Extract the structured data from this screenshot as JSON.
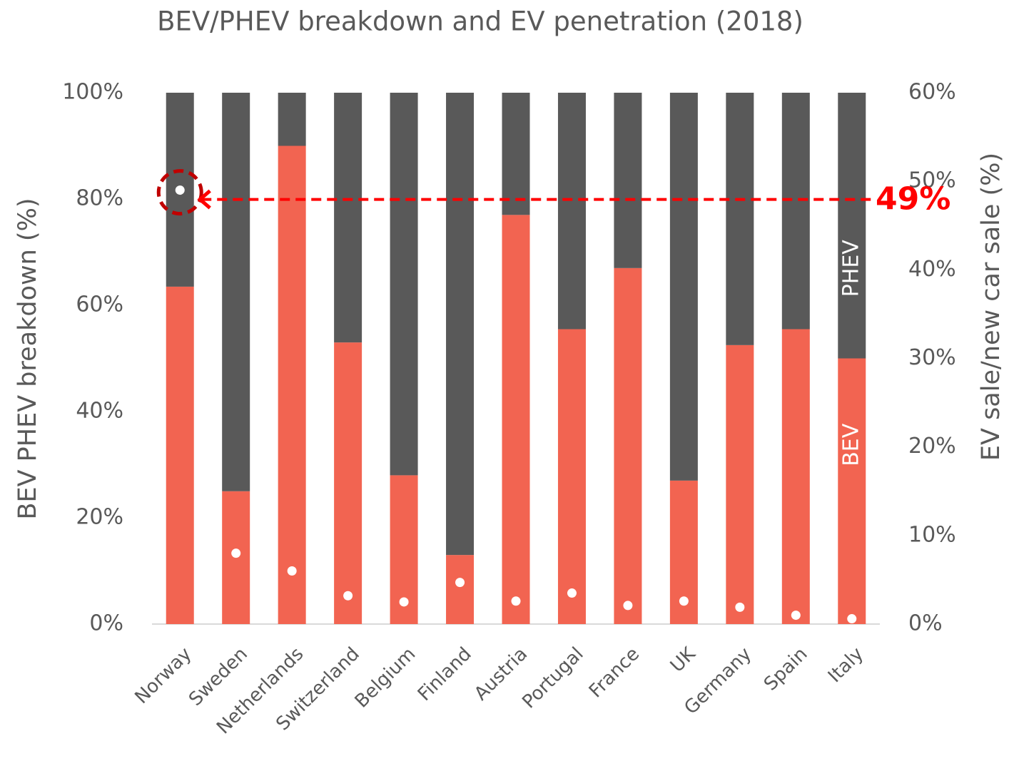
{
  "chart_data": {
    "type": "bar",
    "stacked": true,
    "title": "BEV/PHEV breakdown and EV penetration (2018)",
    "ylabel": "BEV PHEV breakdown (%)",
    "y2label": "EV sale/new car sale (%)",
    "annotation": "49%",
    "categories": [
      "Norway",
      "Sweden",
      "Netherlands",
      "Switzerland",
      "Belgium",
      "Finland",
      "Austria",
      "Portugal",
      "France",
      "UK",
      "Germany",
      "Spain",
      "Italy"
    ],
    "series": [
      {
        "name": "BEV",
        "color": "#f26451",
        "values": [
          63.5,
          25,
          90,
          53,
          28,
          13,
          77,
          55.5,
          67,
          27,
          52.5,
          55.5,
          50
        ]
      },
      {
        "name": "PHEV",
        "color": "#595959",
        "values": [
          36.5,
          75,
          10,
          47,
          72,
          87,
          23,
          44.5,
          33,
          73,
          47.5,
          44.5,
          50
        ]
      },
      {
        "type": "scatter",
        "axis": "y2",
        "color": "#ffffff",
        "values": [
          49,
          8,
          6,
          3.2,
          2.5,
          4.7,
          2.6,
          3.5,
          2.1,
          2.6,
          1.9,
          1,
          0.6
        ]
      }
    ],
    "ylim": [
      0,
      100
    ],
    "yticks": [
      {
        "value": 0,
        "label": "0%"
      },
      {
        "value": 20,
        "label": "20%"
      },
      {
        "value": 40,
        "label": "40%"
      },
      {
        "value": 60,
        "label": "60%"
      },
      {
        "value": 80,
        "label": "80%"
      },
      {
        "value": 100,
        "label": "100%"
      }
    ],
    "y2lim": [
      0,
      60
    ],
    "y2ticks": [
      {
        "value": 0,
        "label": "0%"
      },
      {
        "value": 10,
        "label": "10%"
      },
      {
        "value": 20,
        "label": "20%"
      },
      {
        "value": 30,
        "label": "30%"
      },
      {
        "value": 40,
        "label": "40%"
      },
      {
        "value": 50,
        "label": "50%"
      },
      {
        "value": 60,
        "label": "60%"
      }
    ],
    "annotation_color": "#ff0000"
  }
}
